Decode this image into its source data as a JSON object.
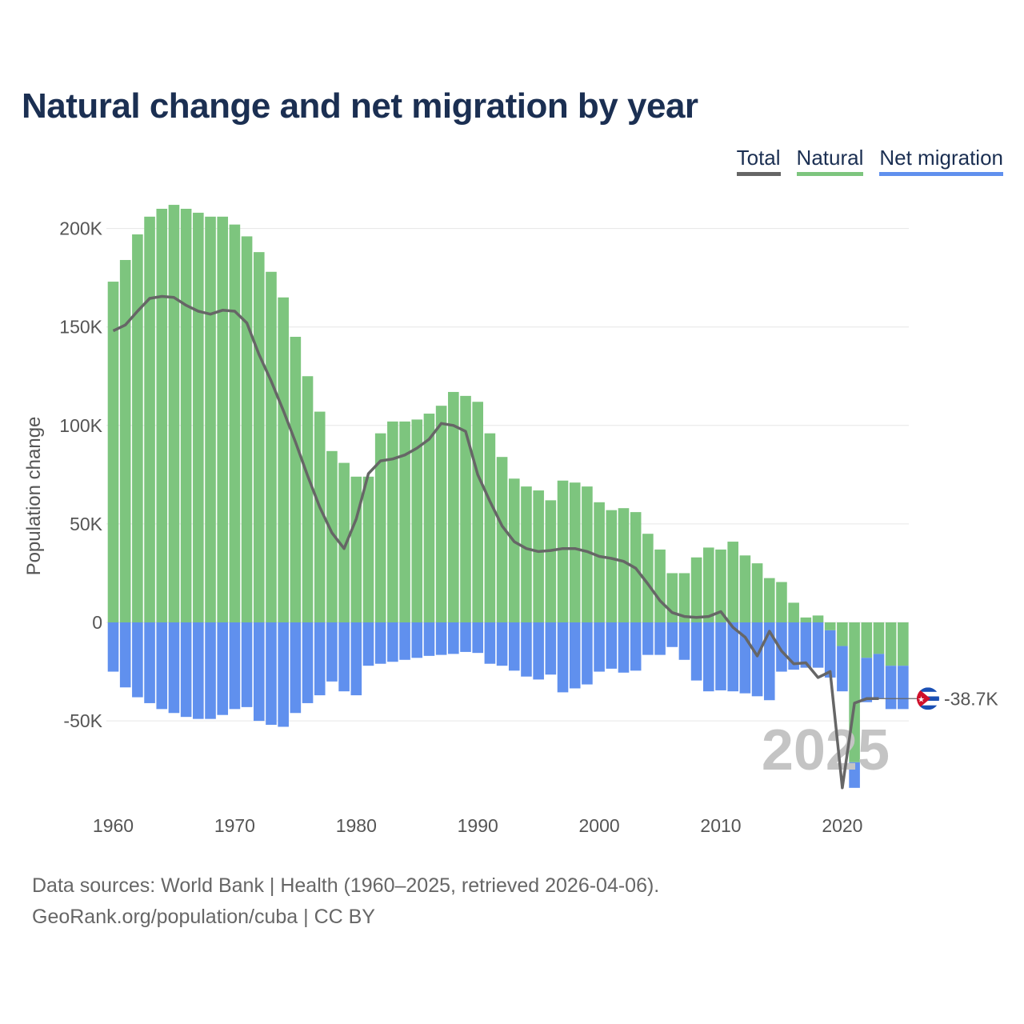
{
  "title": "Natural change and net migration by year",
  "legend": {
    "total": "Total",
    "natural": "Natural",
    "net_migration": "Net migration"
  },
  "colors": {
    "total": "#666666",
    "natural": "#7dc57e",
    "net_migration": "#6090ee",
    "grid": "#e6e6e6",
    "watermark": "#c4c4c4"
  },
  "flag_icon": "cuba-flag-icon",
  "footer": {
    "sources": "Data sources: World Bank | Health (1960–2025, retrieved 2026-04-06).",
    "attribution": "GeoRank.org/population/cuba | CC BY"
  },
  "chart_data": {
    "type": "bar",
    "stacked": true,
    "title": "Natural change and net migration by year",
    "xlabel": "",
    "ylabel": "Population change",
    "ylim": [
      -92000,
      220000
    ],
    "yticks": [
      -50000,
      0,
      50000,
      100000,
      150000,
      200000
    ],
    "ytick_labels": [
      "-50K",
      "0",
      "50K",
      "100K",
      "150K",
      "200K"
    ],
    "xticks": [
      1960,
      1970,
      1980,
      1990,
      2000,
      2010,
      2020
    ],
    "xtick_labels": [
      "1960",
      "1970",
      "1980",
      "1990",
      "2000",
      "2010",
      "2020"
    ],
    "grid": true,
    "legend_position": "top-right",
    "year_label": "2025",
    "end_label": "-38.7K",
    "years": [
      1960,
      1961,
      1962,
      1963,
      1964,
      1965,
      1966,
      1967,
      1968,
      1969,
      1970,
      1971,
      1972,
      1973,
      1974,
      1975,
      1976,
      1977,
      1978,
      1979,
      1980,
      1981,
      1982,
      1983,
      1984,
      1985,
      1986,
      1987,
      1988,
      1989,
      1990,
      1991,
      1992,
      1993,
      1994,
      1995,
      1996,
      1997,
      1998,
      1999,
      2000,
      2001,
      2002,
      2003,
      2004,
      2005,
      2006,
      2007,
      2008,
      2009,
      2010,
      2011,
      2012,
      2013,
      2014,
      2015,
      2016,
      2017,
      2018,
      2019,
      2020,
      2021,
      2022,
      2023,
      2024,
      2025
    ],
    "series": [
      {
        "name": "Natural",
        "values": [
          173000,
          184000,
          197000,
          206000,
          210000,
          212000,
          210000,
          208000,
          206000,
          206000,
          202000,
          196000,
          188000,
          178000,
          165000,
          145000,
          125000,
          107000,
          87000,
          81000,
          74000,
          74000,
          96000,
          102000,
          102000,
          103000,
          106000,
          110000,
          117000,
          115000,
          112000,
          96000,
          84000,
          73000,
          69000,
          67000,
          62000,
          72000,
          71000,
          69000,
          61000,
          57000,
          58000,
          56000,
          45000,
          37000,
          25000,
          25000,
          33000,
          38000,
          37000,
          41000,
          34000,
          30000,
          22500,
          20500,
          10000,
          2500,
          3500,
          -4000,
          -12000,
          -71000,
          -18000,
          -16000,
          -22000,
          -22000
        ]
      },
      {
        "name": "Net migration",
        "values": [
          -25000,
          -33000,
          -38000,
          -41000,
          -44000,
          -46000,
          -48000,
          -49000,
          -49000,
          -47000,
          -44000,
          -43000,
          -50000,
          -52000,
          -53000,
          -46000,
          -41000,
          -37000,
          -30000,
          -35000,
          -37000,
          -22000,
          -21000,
          -20000,
          -19000,
          -18000,
          -17000,
          -16500,
          -16000,
          -15000,
          -15500,
          -21000,
          -22000,
          -24500,
          -27500,
          -29000,
          -26500,
          -35500,
          -33500,
          -31500,
          -25000,
          -23500,
          -25500,
          -24500,
          -16500,
          -16500,
          -12500,
          -19000,
          -29500,
          -35000,
          -34500,
          -35000,
          -36000,
          -37500,
          -39500,
          -25000,
          -24000,
          -23000,
          -23000,
          -24000,
          -23000,
          -13000,
          -22500,
          -22500,
          -22000,
          -22000
        ]
      },
      {
        "name": "Total",
        "values": [
          148000,
          151000,
          158000,
          164500,
          165500,
          165000,
          161000,
          158000,
          156500,
          158500,
          158000,
          152000,
          136000,
          122500,
          107500,
          91500,
          74500,
          58500,
          45500,
          37500,
          52500,
          75500,
          82000,
          83000,
          85000,
          88500,
          93000,
          101000,
          100000,
          97000,
          75000,
          61500,
          49000,
          41000,
          37500,
          36000,
          36500,
          37500,
          37500,
          36000,
          33500,
          32500,
          31000,
          27500,
          19500,
          11000,
          5000,
          3000,
          2500,
          3000,
          5500,
          -2500,
          -7500,
          -17000,
          -4500,
          -14500,
          -21000,
          -20500,
          -28000,
          -25000,
          -84000,
          -41000,
          -38700,
          -38700,
          -38700,
          -38700
        ]
      }
    ],
    "total_line_last_year": 2023
  }
}
